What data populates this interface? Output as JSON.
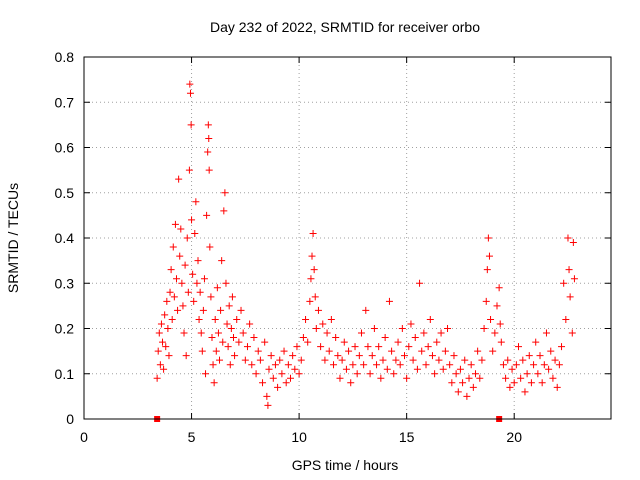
{
  "chart_data": {
    "type": "scatter",
    "title": "Day 232 of 2022, SRMTID for receiver orbo",
    "xlabel": "GPS time / hours",
    "ylabel": "SRMTID / TECUs",
    "xlim": [
      0,
      24.5
    ],
    "ylim": [
      0,
      0.8
    ],
    "xticks": [
      0,
      5,
      10,
      15,
      20
    ],
    "xtick_labels": [
      "0",
      "5",
      "10",
      "15",
      "20"
    ],
    "yticks": [
      0,
      0.1,
      0.2,
      0.3,
      0.4,
      0.5,
      0.6,
      0.7,
      0.8
    ],
    "ytick_labels": [
      "0",
      "0.1",
      "0.2",
      "0.3",
      "0.4",
      "0.5",
      "0.6",
      "0.7",
      "0.8"
    ],
    "grid": true,
    "marker": "+",
    "series": [
      {
        "name": "SRMTID",
        "color": "#ff0000",
        "points": [
          [
            3.4,
            0.09
          ],
          [
            3.45,
            0.15
          ],
          [
            3.5,
            0.19
          ],
          [
            3.55,
            0.12
          ],
          [
            3.6,
            0.21
          ],
          [
            3.65,
            0.17
          ],
          [
            3.7,
            0.11
          ],
          [
            3.75,
            0.23
          ],
          [
            3.8,
            0.16
          ],
          [
            3.85,
            0.26
          ],
          [
            3.9,
            0.2
          ],
          [
            3.95,
            0.14
          ],
          [
            4.0,
            0.28
          ],
          [
            4.05,
            0.33
          ],
          [
            4.1,
            0.22
          ],
          [
            4.15,
            0.38
          ],
          [
            4.2,
            0.27
          ],
          [
            4.25,
            0.43
          ],
          [
            4.3,
            0.31
          ],
          [
            4.35,
            0.24
          ],
          [
            4.4,
            0.53
          ],
          [
            4.45,
            0.36
          ],
          [
            4.5,
            0.42
          ],
          [
            4.55,
            0.3
          ],
          [
            4.6,
            0.25
          ],
          [
            4.65,
            0.19
          ],
          [
            4.7,
            0.34
          ],
          [
            4.75,
            0.14
          ],
          [
            4.8,
            0.4
          ],
          [
            4.85,
            0.28
          ],
          [
            4.9,
            0.55
          ],
          [
            4.92,
            0.74
          ],
          [
            4.95,
            0.72
          ],
          [
            4.98,
            0.65
          ],
          [
            5.0,
            0.44
          ],
          [
            5.05,
            0.32
          ],
          [
            5.1,
            0.26
          ],
          [
            5.15,
            0.41
          ],
          [
            5.2,
            0.48
          ],
          [
            5.25,
            0.3
          ],
          [
            5.3,
            0.35
          ],
          [
            5.35,
            0.22
          ],
          [
            5.4,
            0.28
          ],
          [
            5.45,
            0.19
          ],
          [
            5.5,
            0.15
          ],
          [
            5.55,
            0.24
          ],
          [
            5.6,
            0.31
          ],
          [
            5.65,
            0.1
          ],
          [
            5.7,
            0.45
          ],
          [
            5.75,
            0.59
          ],
          [
            5.78,
            0.65
          ],
          [
            5.8,
            0.62
          ],
          [
            5.82,
            0.55
          ],
          [
            5.85,
            0.38
          ],
          [
            5.9,
            0.27
          ],
          [
            5.95,
            0.18
          ],
          [
            6.0,
            0.12
          ],
          [
            6.05,
            0.08
          ],
          [
            6.1,
            0.22
          ],
          [
            6.15,
            0.15
          ],
          [
            6.2,
            0.29
          ],
          [
            6.25,
            0.19
          ],
          [
            6.3,
            0.13
          ],
          [
            6.35,
            0.24
          ],
          [
            6.4,
            0.35
          ],
          [
            6.45,
            0.17
          ],
          [
            6.5,
            0.46
          ],
          [
            6.55,
            0.5
          ],
          [
            6.6,
            0.3
          ],
          [
            6.65,
            0.21
          ],
          [
            6.7,
            0.16
          ],
          [
            6.75,
            0.25
          ],
          [
            6.8,
            0.12
          ],
          [
            6.85,
            0.2
          ],
          [
            6.9,
            0.27
          ],
          [
            6.95,
            0.18
          ],
          [
            7.0,
            0.14
          ],
          [
            7.1,
            0.22
          ],
          [
            7.2,
            0.17
          ],
          [
            7.3,
            0.24
          ],
          [
            7.4,
            0.19
          ],
          [
            7.5,
            0.13
          ],
          [
            7.6,
            0.16
          ],
          [
            7.7,
            0.21
          ],
          [
            7.8,
            0.12
          ],
          [
            7.9,
            0.18
          ],
          [
            8.0,
            0.1
          ],
          [
            8.1,
            0.15
          ],
          [
            8.2,
            0.13
          ],
          [
            8.3,
            0.08
          ],
          [
            8.4,
            0.17
          ],
          [
            8.5,
            0.05
          ],
          [
            8.55,
            0.03
          ],
          [
            8.6,
            0.11
          ],
          [
            8.7,
            0.14
          ],
          [
            8.8,
            0.09
          ],
          [
            8.9,
            0.12
          ],
          [
            9.0,
            0.07
          ],
          [
            9.1,
            0.13
          ],
          [
            9.2,
            0.1
          ],
          [
            9.3,
            0.15
          ],
          [
            9.4,
            0.08
          ],
          [
            9.5,
            0.12
          ],
          [
            9.6,
            0.09
          ],
          [
            9.7,
            0.14
          ],
          [
            9.8,
            0.11
          ],
          [
            9.9,
            0.16
          ],
          [
            10.0,
            0.1
          ],
          [
            10.1,
            0.13
          ],
          [
            10.2,
            0.18
          ],
          [
            10.3,
            0.22
          ],
          [
            10.4,
            0.17
          ],
          [
            10.5,
            0.26
          ],
          [
            10.55,
            0.31
          ],
          [
            10.6,
            0.36
          ],
          [
            10.65,
            0.41
          ],
          [
            10.7,
            0.33
          ],
          [
            10.75,
            0.27
          ],
          [
            10.8,
            0.2
          ],
          [
            10.9,
            0.24
          ],
          [
            11.0,
            0.16
          ],
          [
            11.1,
            0.21
          ],
          [
            11.2,
            0.13
          ],
          [
            11.3,
            0.19
          ],
          [
            11.4,
            0.15
          ],
          [
            11.5,
            0.22
          ],
          [
            11.6,
            0.12
          ],
          [
            11.7,
            0.18
          ],
          [
            11.8,
            0.14
          ],
          [
            11.9,
            0.09
          ],
          [
            12.0,
            0.13
          ],
          [
            12.1,
            0.17
          ],
          [
            12.2,
            0.11
          ],
          [
            12.3,
            0.15
          ],
          [
            12.4,
            0.08
          ],
          [
            12.5,
            0.12
          ],
          [
            12.6,
            0.16
          ],
          [
            12.7,
            0.1
          ],
          [
            12.8,
            0.14
          ],
          [
            12.9,
            0.19
          ],
          [
            13.0,
            0.12
          ],
          [
            13.1,
            0.24
          ],
          [
            13.2,
            0.16
          ],
          [
            13.3,
            0.1
          ],
          [
            13.4,
            0.14
          ],
          [
            13.5,
            0.2
          ],
          [
            13.6,
            0.12
          ],
          [
            13.7,
            0.16
          ],
          [
            13.8,
            0.09
          ],
          [
            13.9,
            0.13
          ],
          [
            14.0,
            0.18
          ],
          [
            14.1,
            0.11
          ],
          [
            14.2,
            0.26
          ],
          [
            14.3,
            0.15
          ],
          [
            14.4,
            0.1
          ],
          [
            14.5,
            0.13
          ],
          [
            14.6,
            0.17
          ],
          [
            14.7,
            0.12
          ],
          [
            14.8,
            0.2
          ],
          [
            14.9,
            0.14
          ],
          [
            15.0,
            0.09
          ],
          [
            15.1,
            0.16
          ],
          [
            15.2,
            0.21
          ],
          [
            15.3,
            0.13
          ],
          [
            15.4,
            0.18
          ],
          [
            15.5,
            0.11
          ],
          [
            15.6,
            0.3
          ],
          [
            15.7,
            0.15
          ],
          [
            15.8,
            0.19
          ],
          [
            15.9,
            0.12
          ],
          [
            16.0,
            0.16
          ],
          [
            16.1,
            0.22
          ],
          [
            16.2,
            0.14
          ],
          [
            16.3,
            0.1
          ],
          [
            16.4,
            0.17
          ],
          [
            16.5,
            0.13
          ],
          [
            16.6,
            0.19
          ],
          [
            16.7,
            0.11
          ],
          [
            16.8,
            0.15
          ],
          [
            16.9,
            0.2
          ],
          [
            17.0,
            0.12
          ],
          [
            17.1,
            0.08
          ],
          [
            17.2,
            0.14
          ],
          [
            17.3,
            0.1
          ],
          [
            17.4,
            0.06
          ],
          [
            17.5,
            0.11
          ],
          [
            17.6,
            0.08
          ],
          [
            17.7,
            0.13
          ],
          [
            17.8,
            0.05
          ],
          [
            17.9,
            0.09
          ],
          [
            18.0,
            0.12
          ],
          [
            18.1,
            0.07
          ],
          [
            18.2,
            0.1
          ],
          [
            18.3,
            0.15
          ],
          [
            18.4,
            0.09
          ],
          [
            18.5,
            0.13
          ],
          [
            18.6,
            0.2
          ],
          [
            18.7,
            0.26
          ],
          [
            18.75,
            0.33
          ],
          [
            18.8,
            0.4
          ],
          [
            18.85,
            0.36
          ],
          [
            18.9,
            0.22
          ],
          [
            19.0,
            0.15
          ],
          [
            19.1,
            0.19
          ],
          [
            19.2,
            0.25
          ],
          [
            19.3,
            0.29
          ],
          [
            19.35,
            0.21
          ],
          [
            19.4,
            0.17
          ],
          [
            19.5,
            0.12
          ],
          [
            19.6,
            0.09
          ],
          [
            19.7,
            0.13
          ],
          [
            19.8,
            0.07
          ],
          [
            19.9,
            0.11
          ],
          [
            20.0,
            0.08
          ],
          [
            20.1,
            0.12
          ],
          [
            20.2,
            0.16
          ],
          [
            20.3,
            0.09
          ],
          [
            20.4,
            0.13
          ],
          [
            20.5,
            0.06
          ],
          [
            20.6,
            0.1
          ],
          [
            20.7,
            0.14
          ],
          [
            20.8,
            0.08
          ],
          [
            20.9,
            0.12
          ],
          [
            21.0,
            0.17
          ],
          [
            21.1,
            0.1
          ],
          [
            21.2,
            0.14
          ],
          [
            21.3,
            0.08
          ],
          [
            21.4,
            0.12
          ],
          [
            21.5,
            0.19
          ],
          [
            21.6,
            0.11
          ],
          [
            21.7,
            0.15
          ],
          [
            21.8,
            0.09
          ],
          [
            21.9,
            0.13
          ],
          [
            22.0,
            0.07
          ],
          [
            22.1,
            0.12
          ],
          [
            22.2,
            0.16
          ],
          [
            22.3,
            0.3
          ],
          [
            22.4,
            0.22
          ],
          [
            22.5,
            0.4
          ],
          [
            22.55,
            0.33
          ],
          [
            22.6,
            0.27
          ],
          [
            22.7,
            0.19
          ],
          [
            22.75,
            0.39
          ],
          [
            22.8,
            0.31
          ]
        ]
      }
    ],
    "x_axis_markers": [
      3.4,
      19.3
    ]
  }
}
